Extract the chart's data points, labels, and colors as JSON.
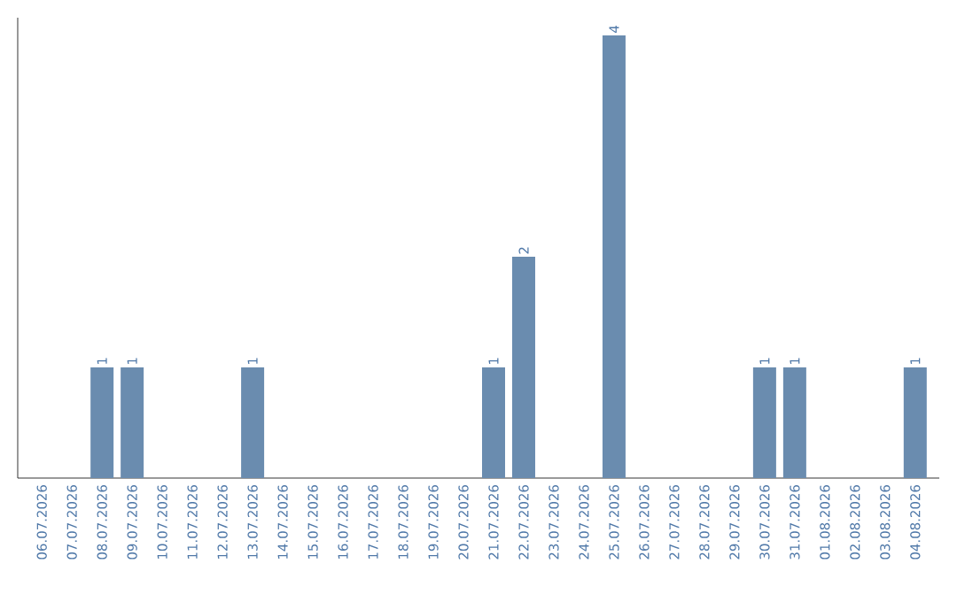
{
  "chart_data": {
    "type": "bar",
    "categories": [
      "06.07.2026",
      "07.07.2026",
      "08.07.2026",
      "09.07.2026",
      "10.07.2026",
      "11.07.2026",
      "12.07.2026",
      "13.07.2026",
      "14.07.2026",
      "15.07.2026",
      "16.07.2026",
      "17.07.2026",
      "18.07.2026",
      "19.07.2026",
      "20.07.2026",
      "21.07.2026",
      "22.07.2026",
      "23.07.2026",
      "24.07.2026",
      "25.07.2026",
      "26.07.2026",
      "27.07.2026",
      "28.07.2026",
      "29.07.2026",
      "30.07.2026",
      "31.07.2026",
      "01.08.2026",
      "02.08.2026",
      "03.08.2026",
      "04.08.2026"
    ],
    "values": [
      0,
      0,
      1,
      1,
      0,
      0,
      0,
      1,
      0,
      0,
      0,
      0,
      0,
      0,
      0,
      1,
      2,
      0,
      0,
      4,
      0,
      0,
      0,
      0,
      1,
      1,
      0,
      0,
      0,
      1
    ],
    "value_labels": [
      null,
      null,
      "1",
      "1",
      null,
      null,
      null,
      "1",
      null,
      null,
      null,
      null,
      null,
      null,
      null,
      "1",
      "2",
      null,
      null,
      "4",
      null,
      null,
      null,
      null,
      "1",
      "1",
      null,
      null,
      null,
      "1"
    ],
    "color": "#6a8caf"
  }
}
